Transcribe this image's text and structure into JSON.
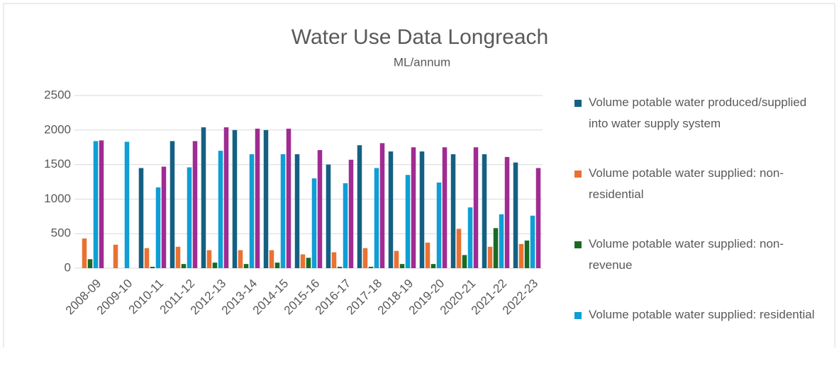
{
  "chart_data": {
    "type": "bar",
    "title": "Water Use Data Longreach",
    "subtitle": "ML/annum",
    "categories": [
      "2008-09",
      "2009-10",
      "2010-11",
      "2011-12",
      "2012-13",
      "2013-14",
      "2014-15",
      "2015-16",
      "2016-17",
      "2017-18",
      "2018-19",
      "2019-20",
      "2020-21",
      "2021-22",
      "2022-23"
    ],
    "series": [
      {
        "name": "Volume potable water produced/supplied into water supply system",
        "color": "#156082",
        "values": [
          null,
          null,
          1450,
          1840,
          2040,
          2000,
          2000,
          1650,
          1500,
          1780,
          1690,
          1690,
          1650,
          1650,
          1530
        ]
      },
      {
        "name": "Volume potable water supplied: non-residential",
        "color": "#e97132",
        "values": [
          430,
          340,
          290,
          310,
          260,
          260,
          260,
          200,
          230,
          290,
          250,
          370,
          570,
          310,
          350
        ]
      },
      {
        "name": "Volume potable water supplied: non-revenue",
        "color": "#196b24",
        "values": [
          130,
          null,
          20,
          60,
          80,
          60,
          80,
          150,
          20,
          20,
          60,
          60,
          190,
          580,
          400
        ]
      },
      {
        "name": "Volume potable water supplied: residential",
        "color": "#0f9ed5",
        "values": [
          1840,
          1830,
          1170,
          1460,
          1700,
          1650,
          1650,
          1300,
          1230,
          1450,
          1350,
          1240,
          880,
          780,
          760
        ]
      },
      {
        "color": "#a02b93",
        "values": [
          1850,
          null,
          1470,
          1840,
          2040,
          2020,
          2020,
          1710,
          1570,
          1810,
          1750,
          1750,
          1750,
          1610,
          1450
        ]
      }
    ],
    "ylim": [
      0,
      2500
    ],
    "yticks": [
      0,
      500,
      1000,
      1500,
      2000,
      2500
    ],
    "grid": true,
    "legend": "right"
  }
}
